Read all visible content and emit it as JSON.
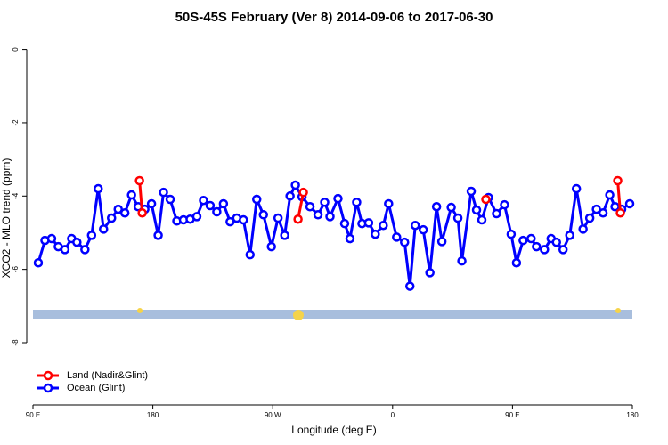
{
  "chart_data": {
    "type": "line",
    "title": "50S-45S February (Ver 8)   2014-09-06 to 2017-06-30",
    "xlabel": "Longitude (deg E)",
    "ylabel": "XCO2 - MLO trend (ppm)",
    "xlim": [
      90,
      540
    ],
    "ylim": [
      -9.7,
      0.5
    ],
    "xticks": [
      {
        "value": 90,
        "label": "90 E"
      },
      180,
      {
        "value": 270,
        "label": "90 W"
      },
      {
        "value": 360,
        "label": "0"
      },
      {
        "value": 450,
        "label": "90 E"
      },
      {
        "value": 540,
        "label": "180"
      }
    ],
    "yticks": [
      0,
      -2,
      -4,
      -6,
      -8
    ],
    "legend": "bottom-left",
    "series": [
      {
        "name": "Land (Nadir&Glint)",
        "color": "#ff0000",
        "x": [
          170,
          172,
          289,
          293,
          430,
          529,
          531
        ],
        "values": [
          -3.58,
          -4.46,
          -4.63,
          -3.9,
          -4.09,
          -3.58,
          -4.46
        ]
      },
      {
        "name": "Ocean (Glint)",
        "color": "#0000ff",
        "x": [
          94,
          99,
          104,
          109,
          114,
          119,
          123,
          129,
          134,
          139,
          143,
          149,
          154,
          159,
          164,
          169,
          174,
          179,
          184,
          188,
          193,
          198,
          203,
          208,
          213,
          218,
          223,
          228,
          233,
          238,
          243,
          248,
          253,
          258,
          263,
          269,
          274,
          279,
          283,
          287,
          292,
          298,
          304,
          309,
          313,
          319,
          324,
          328,
          333,
          337,
          342,
          347,
          353,
          357,
          363,
          369,
          373,
          377,
          383,
          388,
          393,
          397,
          404,
          409,
          412,
          419,
          423,
          427,
          432,
          438,
          444,
          449,
          453,
          458,
          464,
          468,
          474,
          479,
          483,
          488,
          493,
          498,
          503,
          508,
          513,
          518,
          523,
          527,
          532,
          538
        ],
        "values": [
          -5.82,
          -5.21,
          -5.16,
          -5.38,
          -5.46,
          -5.16,
          -5.26,
          -5.46,
          -5.07,
          -3.8,
          -4.9,
          -4.6,
          -4.36,
          -4.46,
          -3.97,
          -4.29,
          -4.36,
          -4.21,
          -5.07,
          -3.9,
          -4.09,
          -4.68,
          -4.65,
          -4.63,
          -4.56,
          -4.12,
          -4.26,
          -4.43,
          -4.21,
          -4.7,
          -4.6,
          -4.65,
          -5.6,
          -4.09,
          -4.51,
          -5.38,
          -4.6,
          -5.07,
          -4.0,
          -3.7,
          -4.02,
          -4.29,
          -4.51,
          -4.17,
          -4.56,
          -4.07,
          -4.75,
          -5.16,
          -4.17,
          -4.75,
          -4.73,
          -5.04,
          -4.8,
          -4.21,
          -5.12,
          -5.26,
          -6.46,
          -4.8,
          -4.92,
          -6.09,
          -4.29,
          -5.24,
          -4.31,
          -4.6,
          -5.77,
          -3.87,
          -4.38,
          -4.65,
          -4.04,
          -4.48,
          -4.24,
          -5.04,
          -5.82,
          -5.21,
          -5.16,
          -5.38,
          -5.46,
          -5.16,
          -5.26,
          -5.46,
          -5.07,
          -3.8,
          -4.9,
          -4.6,
          -4.36,
          -4.46,
          -3.97,
          -4.29,
          -4.36,
          -4.21
        ]
      }
    ]
  }
}
